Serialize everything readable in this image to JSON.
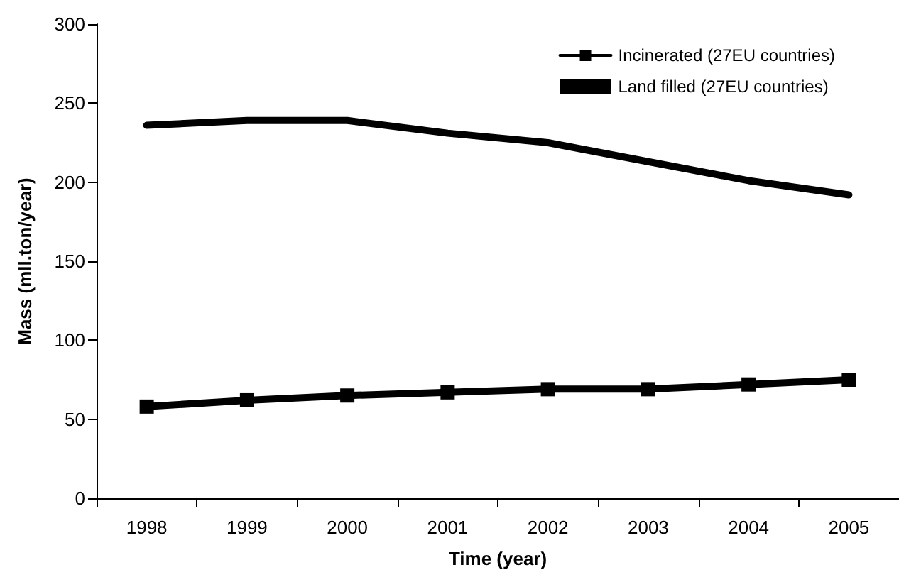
{
  "chart_data": {
    "type": "line",
    "xlabel": "Time (year)",
    "ylabel": "Mass (mll.ton/year)",
    "categories": [
      "1998",
      "1999",
      "2000",
      "2001",
      "2002",
      "2003",
      "2004",
      "2005"
    ],
    "series": [
      {
        "name": "Incinerated (27EU countries)",
        "color": "#000000",
        "marker": "square",
        "values": [
          58,
          62,
          65,
          67,
          69,
          69,
          72,
          75
        ]
      },
      {
        "name": "Land filled (27EU countries)",
        "color": "#000000",
        "marker": "none",
        "values": [
          236,
          239,
          239,
          231,
          225,
          213,
          201,
          192
        ]
      }
    ],
    "ylim": [
      0,
      300
    ],
    "yticks": [
      0,
      50,
      100,
      150,
      200,
      250,
      300
    ],
    "grid": false,
    "legend": "top right",
    "line_style": "solid"
  }
}
